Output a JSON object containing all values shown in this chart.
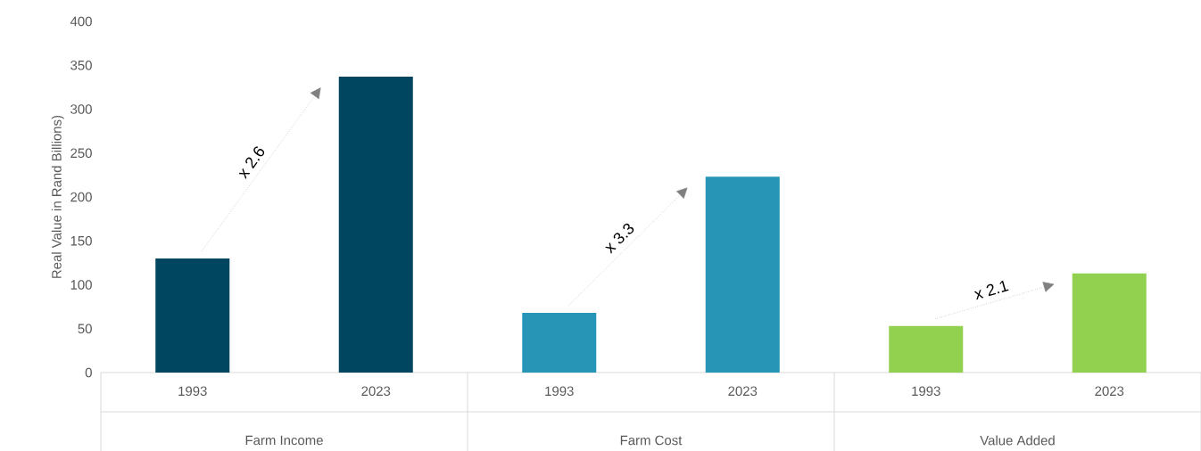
{
  "chart_data": {
    "type": "bar",
    "ylabel": "Real Value in Rand Billions)",
    "categories": [
      "1993",
      "2023",
      "1993",
      "2023",
      "1993",
      "2023"
    ],
    "values": [
      130,
      337,
      68,
      223,
      53,
      113
    ],
    "colors": [
      "#004660",
      "#004660",
      "#2795b5",
      "#2795b5",
      "#92d050",
      "#92d050"
    ],
    "ylim": [
      0,
      400
    ],
    "yticks": [
      0,
      50,
      100,
      150,
      200,
      250,
      300,
      350,
      400
    ],
    "annotations": [
      "x 2.6",
      "x 3.3",
      "x 2.1",
      "Farm Income",
      "Farm Cost",
      "Value Added"
    ]
  }
}
